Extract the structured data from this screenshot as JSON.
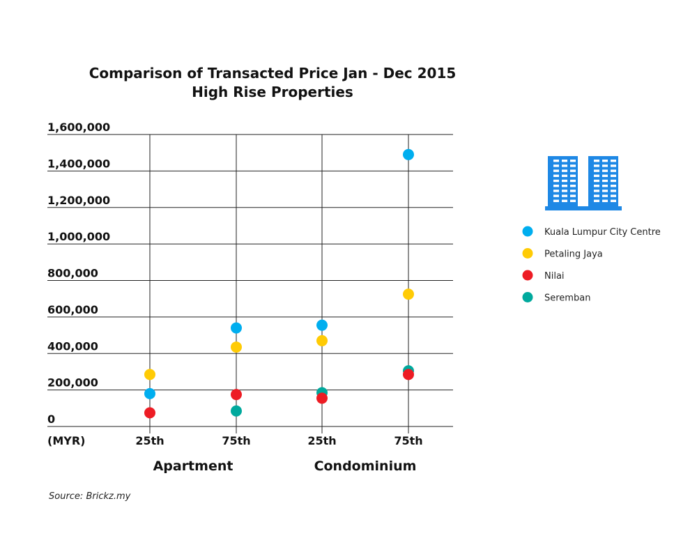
{
  "chart_data": {
    "type": "scatter",
    "title": [
      "Comparison of Transacted Price Jan - Dec 2015",
      "High Rise Properties"
    ],
    "y_unit_label": "(MYR)",
    "y_ticks": [
      "0",
      "200,000",
      "400,000",
      "600,000",
      "800,000",
      "1,000,000",
      "1,200,000",
      "1,400,000",
      "1,600,000"
    ],
    "ylim": [
      0,
      1600000
    ],
    "categories": [
      "25th",
      "75th",
      "25th",
      "75th"
    ],
    "groups": [
      {
        "label": "Apartment",
        "span": [
          0,
          1
        ]
      },
      {
        "label": "Condominium",
        "span": [
          2,
          3
        ]
      }
    ],
    "series": [
      {
        "name": "Kuala Lumpur City Centre",
        "color": "#00AEEF",
        "values": [
          180000,
          540000,
          555000,
          1490000
        ]
      },
      {
        "name": "Petaling Jaya",
        "color": "#FFCB05",
        "values": [
          285000,
          435000,
          470000,
          725000
        ]
      },
      {
        "name": "Nilai",
        "color": "#ED1C24",
        "values": [
          75000,
          175000,
          155000,
          285000
        ]
      },
      {
        "name": "Seremban",
        "color": "#00A99D",
        "values": [
          null,
          85000,
          185000,
          305000
        ]
      }
    ],
    "grid": true,
    "legend_position": "right",
    "source": "Source: Brickz.my"
  },
  "legend_icon": "high-rise-buildings-icon",
  "icon_color": "#1E88E5"
}
